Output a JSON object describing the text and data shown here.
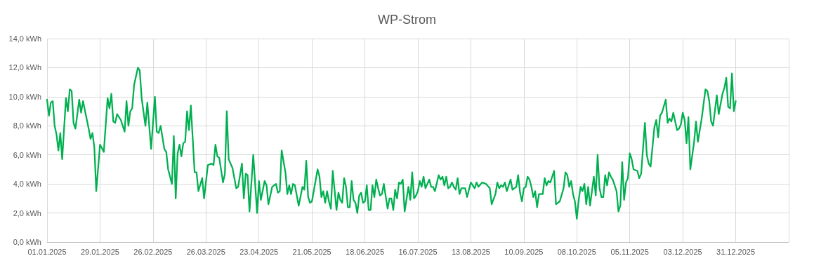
{
  "chart_data": {
    "type": "line",
    "title": "WP-Strom",
    "x": [
      "2025-01-01",
      "2025-01-02",
      "2025-01-03",
      "2025-01-04",
      "2025-01-05",
      "2025-01-06",
      "2025-01-07",
      "2025-01-08",
      "2025-01-09",
      "2025-01-11",
      "2025-01-12",
      "2025-01-13",
      "2025-01-14",
      "2025-01-15",
      "2025-01-16",
      "2025-01-18",
      "2025-01-19",
      "2025-01-20",
      "2025-01-23",
      "2025-01-24",
      "2025-01-25",
      "2025-01-26",
      "2025-01-27",
      "2025-01-29",
      "2025-01-31",
      "2025-02-02",
      "2025-02-03",
      "2025-02-04",
      "2025-02-05",
      "2025-02-06",
      "2025-02-07",
      "2025-02-09",
      "2025-02-10",
      "2025-02-11",
      "2025-02-12",
      "2025-02-13",
      "2025-02-14",
      "2025-02-15",
      "2025-02-16",
      "2025-02-18",
      "2025-02-19",
      "2025-02-20",
      "2025-02-22",
      "2025-02-23",
      "2025-02-25",
      "2025-02-27",
      "2025-02-28",
      "2025-03-01",
      "2025-03-02",
      "2025-03-04",
      "2025-03-05",
      "2025-03-06",
      "2025-03-08",
      "2025-03-09",
      "2025-03-10",
      "2025-03-11",
      "2025-03-12",
      "2025-03-13",
      "2025-03-14",
      "2025-03-15",
      "2025-03-16",
      "2025-03-17",
      "2025-03-18",
      "2025-03-20",
      "2025-03-21",
      "2025-03-22",
      "2025-03-24",
      "2025-03-25",
      "2025-03-27",
      "2025-03-29",
      "2025-03-30",
      "2025-03-31",
      "2025-04-01",
      "2025-04-02",
      "2025-04-04",
      "2025-04-05",
      "2025-04-06",
      "2025-04-07",
      "2025-04-09",
      "2025-04-11",
      "2025-04-12",
      "2025-04-14",
      "2025-04-15",
      "2025-04-16",
      "2025-04-17",
      "2025-04-18",
      "2025-04-20",
      "2025-04-22",
      "2025-04-23",
      "2025-04-24",
      "2025-04-26",
      "2025-04-27",
      "2025-04-28",
      "2025-04-30",
      "2025-05-02",
      "2025-05-03",
      "2025-05-04",
      "2025-05-05",
      "2025-05-07",
      "2025-05-08",
      "2025-05-09",
      "2025-05-10",
      "2025-05-11",
      "2025-05-12",
      "2025-05-14",
      "2025-05-16",
      "2025-05-17",
      "2025-05-18",
      "2025-05-19",
      "2025-05-20",
      "2025-05-21",
      "2025-05-24",
      "2025-05-25",
      "2025-05-26",
      "2025-05-27",
      "2025-05-28",
      "2025-05-29",
      "2025-05-30",
      "2025-05-31",
      "2025-06-01",
      "2025-06-03",
      "2025-06-04",
      "2025-06-05",
      "2025-06-06",
      "2025-06-07",
      "2025-06-08",
      "2025-06-09",
      "2025-06-10",
      "2025-06-11",
      "2025-06-12",
      "2025-06-13",
      "2025-06-14",
      "2025-06-15",
      "2025-06-16",
      "2025-06-17",
      "2025-06-18",
      "2025-06-19",
      "2025-06-20",
      "2025-06-21",
      "2025-06-22",
      "2025-06-23",
      "2025-06-24",
      "2025-06-25",
      "2025-06-26",
      "2025-06-27",
      "2025-06-28",
      "2025-06-30",
      "2025-07-01",
      "2025-07-02",
      "2025-07-03",
      "2025-07-04",
      "2025-07-05",
      "2025-07-06",
      "2025-07-07",
      "2025-07-08",
      "2025-07-09",
      "2025-07-11",
      "2025-07-12",
      "2025-07-13",
      "2025-07-14",
      "2025-07-15",
      "2025-07-16",
      "2025-07-17",
      "2025-07-18",
      "2025-07-19",
      "2025-07-20",
      "2025-07-22",
      "2025-07-23",
      "2025-07-24",
      "2025-07-25",
      "2025-07-27",
      "2025-07-28",
      "2025-07-29",
      "2025-07-30",
      "2025-07-31",
      "2025-08-01",
      "2025-08-02",
      "2025-08-03",
      "2025-08-04",
      "2025-08-05",
      "2025-08-06",
      "2025-08-07",
      "2025-08-08",
      "2025-08-10",
      "2025-08-11",
      "2025-08-13",
      "2025-08-15",
      "2025-08-16",
      "2025-08-17",
      "2025-08-19",
      "2025-08-21",
      "2025-08-23",
      "2025-08-24",
      "2025-08-26",
      "2025-08-27",
      "2025-08-28",
      "2025-08-29",
      "2025-08-30",
      "2025-08-31",
      "2025-09-01",
      "2025-09-03",
      "2025-09-04",
      "2025-09-06",
      "2025-09-07",
      "2025-09-08",
      "2025-09-09",
      "2025-09-10",
      "2025-09-11",
      "2025-09-12",
      "2025-09-13",
      "2025-09-14",
      "2025-09-15",
      "2025-09-16",
      "2025-09-17",
      "2025-09-18",
      "2025-09-20",
      "2025-09-21",
      "2025-09-22",
      "2025-09-23",
      "2025-09-24",
      "2025-09-26",
      "2025-09-27",
      "2025-09-29",
      "2025-10-01",
      "2025-10-02",
      "2025-10-03",
      "2025-10-04",
      "2025-10-05",
      "2025-10-06",
      "2025-10-07",
      "2025-10-08",
      "2025-10-09",
      "2025-10-10",
      "2025-10-11",
      "2025-10-12",
      "2025-10-13",
      "2025-10-14",
      "2025-10-15",
      "2025-10-17",
      "2025-10-18",
      "2025-10-19",
      "2025-10-20",
      "2025-10-21",
      "2025-10-22",
      "2025-10-23",
      "2025-10-24",
      "2025-10-25",
      "2025-10-26",
      "2025-10-27",
      "2025-10-29",
      "2025-10-30",
      "2025-10-31",
      "2025-11-01",
      "2025-11-02",
      "2025-11-03",
      "2025-11-04",
      "2025-11-05",
      "2025-11-06",
      "2025-11-07",
      "2025-11-09",
      "2025-11-10",
      "2025-11-11",
      "2025-11-13",
      "2025-11-14",
      "2025-11-15",
      "2025-11-16",
      "2025-11-18",
      "2025-11-19",
      "2025-11-20",
      "2025-11-21",
      "2025-11-22",
      "2025-11-24",
      "2025-11-25",
      "2025-11-26",
      "2025-11-27",
      "2025-11-28",
      "2025-11-30",
      "2025-12-01",
      "2025-12-02",
      "2025-12-03",
      "2025-12-04",
      "2025-12-05",
      "2025-12-06",
      "2025-12-07",
      "2025-12-09",
      "2025-12-10",
      "2025-12-11",
      "2025-12-13",
      "2025-12-15",
      "2025-12-16",
      "2025-12-17",
      "2025-12-18",
      "2025-12-19",
      "2025-12-21",
      "2025-12-22",
      "2025-12-24",
      "2025-12-25",
      "2025-12-26",
      "2025-12-27",
      "2025-12-28",
      "2025-12-29",
      "2025-12-30",
      "2025-12-31"
    ],
    "series": [
      {
        "color": "#00b050",
        "values": [
          9.8,
          8.7,
          9.6,
          9.7,
          8.0,
          7.4,
          6.3,
          7.5,
          5.7,
          9.9,
          9.0,
          10.5,
          10.4,
          8.2,
          7.8,
          9.8,
          8.9,
          9.7,
          7.8,
          7.1,
          7.5,
          6.5,
          3.5,
          6.7,
          6.2,
          9.9,
          9.2,
          10.2,
          8.3,
          8.2,
          8.8,
          8.4,
          8.0,
          7.6,
          9.7,
          8.0,
          9.0,
          9.2,
          10.8,
          12.0,
          11.8,
          9.9,
          8.0,
          9.6,
          6.4,
          10.0,
          7.6,
          7.5,
          8.0,
          6.4,
          6.2,
          5.0,
          4.0,
          7.3,
          3.0,
          6.1,
          6.7,
          5.9,
          6.8,
          6.9,
          9.0,
          7.7,
          9.4,
          4.8,
          4.8,
          3.5,
          4.4,
          3.0,
          5.3,
          5.4,
          5.3,
          6.7,
          5.9,
          5.8,
          4.1,
          4.7,
          9.0,
          5.7,
          5.1,
          3.7,
          3.8,
          5.4,
          3.0,
          4.7,
          4.6,
          2.1,
          6.0,
          2.0,
          4.2,
          2.9,
          4.2,
          3.9,
          2.6,
          3.8,
          4.0,
          3.4,
          3.5,
          6.3,
          4.8,
          3.3,
          3.9,
          3.3,
          4.0,
          3.9,
          2.5,
          3.8,
          3.6,
          5.6,
          3.1,
          2.7,
          2.8,
          5.0,
          4.5,
          3.1,
          3.5,
          2.7,
          3.5,
          2.8,
          2.3,
          4.9,
          2.2,
          3.4,
          2.9,
          2.7,
          4.4,
          3.8,
          2.4,
          2.4,
          4.2,
          2.9,
          2.7,
          2.0,
          3.2,
          3.4,
          2.7,
          2.8,
          3.9,
          2.2,
          2.2,
          3.9,
          3.1,
          4.3,
          3.7,
          3.2,
          3.3,
          4.0,
          2.3,
          3.0,
          3.0,
          2.2,
          3.6,
          3.0,
          4.1,
          4.0,
          4.3,
          2.1,
          3.8,
          2.9,
          4.8,
          3.0,
          3.2,
          3.5,
          4.2,
          3.8,
          4.5,
          3.7,
          4.3,
          3.8,
          3.8,
          3.5,
          4.6,
          4.3,
          4.5,
          3.9,
          4.5,
          3.7,
          3.8,
          4.1,
          3.8,
          3.6,
          4.4,
          3.3,
          3.7,
          3.7,
          3.1,
          4.1,
          3.7,
          4.1,
          3.8,
          4.1,
          4.0,
          3.7,
          2.6,
          3.3,
          4.1,
          3.7,
          3.9,
          3.8,
          4.1,
          3.5,
          4.3,
          3.6,
          3.8,
          4.6,
          3.4,
          2.8,
          3.7,
          3.8,
          4.5,
          4.3,
          3.8,
          3.1,
          3.5,
          2.4,
          3.3,
          3.3,
          4.4,
          3.9,
          4.2,
          4.1,
          4.9,
          2.6,
          2.8,
          3.7,
          4.8,
          4.6,
          3.8,
          4.2,
          3.3,
          2.8,
          1.6,
          2.9,
          3.8,
          3.5,
          4.0,
          2.6,
          3.8,
          2.5,
          4.5,
          3.2,
          6.0,
          3.7,
          3.1,
          3.1,
          4.6,
          3.9,
          4.8,
          4.5,
          4.3,
          3.5,
          2.1,
          2.5,
          5.5,
          2.9,
          4.1,
          4.4,
          6.1,
          5.7,
          5.0,
          4.9,
          4.4,
          4.7,
          8.2,
          6.0,
          5.4,
          5.2,
          7.9,
          8.4,
          7.2,
          8.7,
          8.9,
          9.8,
          8.2,
          8.5,
          8.3,
          8.9,
          7.7,
          7.8,
          8.1,
          8.9,
          8.4,
          6.8,
          8.6,
          5.0,
          6.9,
          8.3,
          6.9,
          8.5,
          10.5,
          10.4,
          9.7,
          8.3,
          8.0,
          10.1,
          8.8,
          10.2,
          10.6,
          11.3,
          9.3,
          9.2,
          11.6,
          9.0,
          9.7
        ]
      }
    ],
    "xlim": [
      "2025-01-01",
      "2026-01-28"
    ],
    "xticks": [
      {
        "value": "2025-01-01",
        "label": "01.01.2025"
      },
      {
        "value": "2025-01-29",
        "label": "29.01.2025"
      },
      {
        "value": "2025-02-26",
        "label": "26.02.2025"
      },
      {
        "value": "2025-03-26",
        "label": "26.03.2025"
      },
      {
        "value": "2025-04-23",
        "label": "23.04.2025"
      },
      {
        "value": "2025-05-21",
        "label": "21.05.2025"
      },
      {
        "value": "2025-06-18",
        "label": "18.06.2025"
      },
      {
        "value": "2025-07-16",
        "label": "16.07.2025"
      },
      {
        "value": "2025-08-13",
        "label": "13.08.2025"
      },
      {
        "value": "2025-09-10",
        "label": "10.09.2025"
      },
      {
        "value": "2025-10-08",
        "label": "08.10.2025"
      },
      {
        "value": "2025-11-05",
        "label": "05.11.2025"
      },
      {
        "value": "2025-12-03",
        "label": "03.12.2025"
      },
      {
        "value": "2025-12-31",
        "label": "31.12.2025"
      },
      {
        "value": "2026-01-28",
        "label": null
      }
    ],
    "ylim": [
      0,
      14
    ],
    "yticks": [
      {
        "value": 0,
        "label": "0,0 kWh"
      },
      {
        "value": 2,
        "label": "2,0 kWh"
      },
      {
        "value": 4,
        "label": "4,0 kWh"
      },
      {
        "value": 6,
        "label": "6,0 kWh"
      },
      {
        "value": 8,
        "label": "8,0 kWh"
      },
      {
        "value": 10,
        "label": "10,0 kWh"
      },
      {
        "value": 12,
        "label": "12,0 kWh"
      },
      {
        "value": 14,
        "label": "14,0 kWh"
      }
    ],
    "grid": true,
    "marker": "none",
    "line_style": "solid"
  }
}
